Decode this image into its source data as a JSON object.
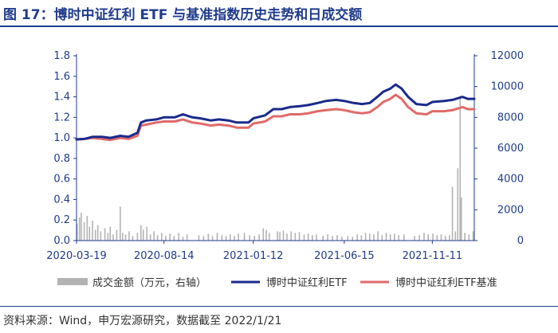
{
  "title": "图 17：博时中证红利 ETF 与基准指数历史走势和日成交额",
  "source": "资料来源：Wind，申万宏源研究，数据截至 2022/1/21",
  "colors": {
    "etf": "#1a2a8c",
    "benchmark": "#e06a6a",
    "volume": "#b3b3b3",
    "axis": "#1f3b8c",
    "text": "#1f3b8c"
  },
  "chart_data": {
    "type": "line",
    "title": "",
    "xlabel": "",
    "ylabel": "",
    "x_ticks": [
      "2020-03-19",
      "2020-08-14",
      "2021-01-12",
      "2021-06-15",
      "2021-11-11"
    ],
    "x_range": [
      "2020-03-19",
      "2022-01-21"
    ],
    "ylim_left": [
      0.0,
      1.8
    ],
    "y_ticks_left": [
      "0.0",
      "0.2",
      "0.4",
      "0.6",
      "0.8",
      "1.0",
      "1.2",
      "1.4",
      "1.6",
      "1.8"
    ],
    "ylim_right": [
      0,
      12000
    ],
    "y_ticks_right": [
      "0",
      "2000",
      "4000",
      "6000",
      "8000",
      "10000",
      "12000"
    ],
    "grid": false,
    "legend_position": "bottom",
    "series": [
      {
        "name": "成交金额（万元，右轴）",
        "type": "bar",
        "axis": "right",
        "points": [
          [
            "2020-03-20",
            1100
          ],
          [
            "2020-03-24",
            1500
          ],
          [
            "2020-03-27",
            1800
          ],
          [
            "2020-04-01",
            1200
          ],
          [
            "2020-04-06",
            1600
          ],
          [
            "2020-04-10",
            900
          ],
          [
            "2020-04-15",
            1300
          ],
          [
            "2020-04-20",
            700
          ],
          [
            "2020-04-24",
            1000
          ],
          [
            "2020-04-29",
            600
          ],
          [
            "2020-05-06",
            800
          ],
          [
            "2020-05-11",
            500
          ],
          [
            "2020-05-15",
            900
          ],
          [
            "2020-05-20",
            400
          ],
          [
            "2020-05-26",
            700
          ],
          [
            "2020-06-01",
            2200
          ],
          [
            "2020-06-05",
            500
          ],
          [
            "2020-06-10",
            400
          ],
          [
            "2020-06-16",
            600
          ],
          [
            "2020-06-22",
            300
          ],
          [
            "2020-06-30",
            500
          ],
          [
            "2020-07-06",
            1000
          ],
          [
            "2020-07-10",
            700
          ],
          [
            "2020-07-16",
            900
          ],
          [
            "2020-07-22",
            400
          ],
          [
            "2020-07-28",
            600
          ],
          [
            "2020-08-03",
            350
          ],
          [
            "2020-08-10",
            500
          ],
          [
            "2020-08-17",
            300
          ],
          [
            "2020-08-24",
            450
          ],
          [
            "2020-08-31",
            300
          ],
          [
            "2020-09-08",
            500
          ],
          [
            "2020-09-15",
            250
          ],
          [
            "2020-09-22",
            400
          ],
          [
            "2020-10-12",
            350
          ],
          [
            "2020-10-20",
            300
          ],
          [
            "2020-10-28",
            450
          ],
          [
            "2020-11-04",
            300
          ],
          [
            "2020-11-12",
            500
          ],
          [
            "2020-11-20",
            350
          ],
          [
            "2020-11-27",
            300
          ],
          [
            "2020-12-04",
            400
          ],
          [
            "2020-12-11",
            300
          ],
          [
            "2020-12-18",
            450
          ],
          [
            "2020-12-28",
            500
          ],
          [
            "2021-01-06",
            350
          ],
          [
            "2021-01-14",
            300
          ],
          [
            "2021-01-22",
            400
          ],
          [
            "2021-01-29",
            800
          ],
          [
            "2021-02-03",
            700
          ],
          [
            "2021-02-08",
            500
          ],
          [
            "2021-02-22",
            600
          ],
          [
            "2021-02-26",
            550
          ],
          [
            "2021-03-04",
            650
          ],
          [
            "2021-03-10",
            450
          ],
          [
            "2021-03-17",
            600
          ],
          [
            "2021-03-24",
            500
          ],
          [
            "2021-03-31",
            550
          ],
          [
            "2021-04-08",
            400
          ],
          [
            "2021-04-15",
            450
          ],
          [
            "2021-04-22",
            350
          ],
          [
            "2021-04-29",
            400
          ],
          [
            "2021-05-10",
            300
          ],
          [
            "2021-05-18",
            400
          ],
          [
            "2021-05-26",
            300
          ],
          [
            "2021-06-03",
            350
          ],
          [
            "2021-06-11",
            250
          ],
          [
            "2021-06-21",
            300
          ],
          [
            "2021-06-29",
            250
          ],
          [
            "2021-07-07",
            400
          ],
          [
            "2021-07-14",
            350
          ],
          [
            "2021-07-21",
            500
          ],
          [
            "2021-07-28",
            450
          ],
          [
            "2021-08-04",
            400
          ],
          [
            "2021-08-11",
            600
          ],
          [
            "2021-08-18",
            350
          ],
          [
            "2021-08-25",
            500
          ],
          [
            "2021-09-01",
            400
          ],
          [
            "2021-09-08",
            450
          ],
          [
            "2021-09-15",
            350
          ],
          [
            "2021-09-24",
            400
          ],
          [
            "2021-10-12",
            300
          ],
          [
            "2021-10-20",
            350
          ],
          [
            "2021-10-28",
            500
          ],
          [
            "2021-11-04",
            400
          ],
          [
            "2021-11-12",
            450
          ],
          [
            "2021-11-19",
            350
          ],
          [
            "2021-11-26",
            400
          ],
          [
            "2021-12-03",
            300
          ],
          [
            "2021-12-10",
            350
          ],
          [
            "2021-12-15",
            3500
          ],
          [
            "2021-12-20",
            600
          ],
          [
            "2021-12-24",
            4700
          ],
          [
            "2021-12-28",
            9400
          ],
          [
            "2021-12-30",
            2800
          ],
          [
            "2022-01-05",
            500
          ],
          [
            "2022-01-12",
            400
          ],
          [
            "2022-01-19",
            600
          ]
        ]
      },
      {
        "name": "博时中证红利ETF",
        "type": "line",
        "axis": "left",
        "points": [
          [
            "2020-03-19",
            0.985
          ],
          [
            "2020-04-01",
            0.99
          ],
          [
            "2020-04-15",
            1.01
          ],
          [
            "2020-05-01",
            1.01
          ],
          [
            "2020-05-15",
            1.0
          ],
          [
            "2020-06-01",
            1.02
          ],
          [
            "2020-06-15",
            1.01
          ],
          [
            "2020-06-30",
            1.05
          ],
          [
            "2020-07-06",
            1.15
          ],
          [
            "2020-07-15",
            1.17
          ],
          [
            "2020-08-01",
            1.18
          ],
          [
            "2020-08-14",
            1.2
          ],
          [
            "2020-09-01",
            1.2
          ],
          [
            "2020-09-15",
            1.23
          ],
          [
            "2020-10-01",
            1.2
          ],
          [
            "2020-10-15",
            1.19
          ],
          [
            "2020-11-01",
            1.17
          ],
          [
            "2020-11-15",
            1.18
          ],
          [
            "2020-12-01",
            1.17
          ],
          [
            "2020-12-15",
            1.15
          ],
          [
            "2021-01-04",
            1.15
          ],
          [
            "2021-01-12",
            1.19
          ],
          [
            "2021-02-01",
            1.22
          ],
          [
            "2021-02-15",
            1.28
          ],
          [
            "2021-03-01",
            1.28
          ],
          [
            "2021-03-15",
            1.3
          ],
          [
            "2021-04-01",
            1.31
          ],
          [
            "2021-04-15",
            1.32
          ],
          [
            "2021-05-01",
            1.34
          ],
          [
            "2021-05-15",
            1.36
          ],
          [
            "2021-06-01",
            1.37
          ],
          [
            "2021-06-15",
            1.36
          ],
          [
            "2021-07-01",
            1.34
          ],
          [
            "2021-07-15",
            1.33
          ],
          [
            "2021-07-28",
            1.34
          ],
          [
            "2021-08-10",
            1.4
          ],
          [
            "2021-08-20",
            1.45
          ],
          [
            "2021-09-01",
            1.48
          ],
          [
            "2021-09-10",
            1.52
          ],
          [
            "2021-09-20",
            1.48
          ],
          [
            "2021-10-01",
            1.4
          ],
          [
            "2021-10-15",
            1.33
          ],
          [
            "2021-11-01",
            1.32
          ],
          [
            "2021-11-11",
            1.35
          ],
          [
            "2021-12-01",
            1.36
          ],
          [
            "2021-12-15",
            1.37
          ],
          [
            "2022-01-01",
            1.4
          ],
          [
            "2022-01-10",
            1.38
          ],
          [
            "2022-01-21",
            1.38
          ]
        ]
      },
      {
        "name": "博时中证红利ETF基准",
        "type": "line",
        "axis": "left",
        "points": [
          [
            "2020-03-19",
            0.985
          ],
          [
            "2020-04-01",
            0.99
          ],
          [
            "2020-04-15",
            1.0
          ],
          [
            "2020-05-01",
            0.99
          ],
          [
            "2020-05-15",
            0.98
          ],
          [
            "2020-06-01",
            1.0
          ],
          [
            "2020-06-15",
            0.99
          ],
          [
            "2020-06-30",
            1.02
          ],
          [
            "2020-07-06",
            1.12
          ],
          [
            "2020-07-15",
            1.13
          ],
          [
            "2020-08-01",
            1.15
          ],
          [
            "2020-08-14",
            1.16
          ],
          [
            "2020-09-01",
            1.16
          ],
          [
            "2020-09-15",
            1.18
          ],
          [
            "2020-10-01",
            1.15
          ],
          [
            "2020-10-15",
            1.14
          ],
          [
            "2020-11-01",
            1.12
          ],
          [
            "2020-11-15",
            1.13
          ],
          [
            "2020-12-01",
            1.12
          ],
          [
            "2020-12-15",
            1.1
          ],
          [
            "2021-01-04",
            1.1
          ],
          [
            "2021-01-12",
            1.14
          ],
          [
            "2021-02-01",
            1.16
          ],
          [
            "2021-02-15",
            1.21
          ],
          [
            "2021-03-01",
            1.21
          ],
          [
            "2021-03-15",
            1.23
          ],
          [
            "2021-04-01",
            1.23
          ],
          [
            "2021-04-15",
            1.24
          ],
          [
            "2021-05-01",
            1.26
          ],
          [
            "2021-05-15",
            1.27
          ],
          [
            "2021-06-01",
            1.28
          ],
          [
            "2021-06-15",
            1.27
          ],
          [
            "2021-07-01",
            1.25
          ],
          [
            "2021-07-15",
            1.24
          ],
          [
            "2021-07-28",
            1.25
          ],
          [
            "2021-08-10",
            1.3
          ],
          [
            "2021-08-20",
            1.35
          ],
          [
            "2021-09-01",
            1.38
          ],
          [
            "2021-09-10",
            1.42
          ],
          [
            "2021-09-20",
            1.38
          ],
          [
            "2021-10-01",
            1.3
          ],
          [
            "2021-10-15",
            1.24
          ],
          [
            "2021-11-01",
            1.23
          ],
          [
            "2021-11-11",
            1.26
          ],
          [
            "2021-12-01",
            1.26
          ],
          [
            "2021-12-15",
            1.27
          ],
          [
            "2022-01-01",
            1.3
          ],
          [
            "2022-01-10",
            1.28
          ],
          [
            "2022-01-21",
            1.28
          ]
        ]
      }
    ]
  }
}
